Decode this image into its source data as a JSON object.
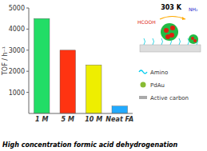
{
  "chart_data": {
    "type": "bar",
    "categories": [
      "1 M",
      "5 M",
      "10 M",
      "Neat FA"
    ],
    "values": [
      4500,
      3000,
      2300,
      350
    ],
    "colors": [
      "#22dd66",
      "#ff3311",
      "#eeee00",
      "#22aaff"
    ],
    "ylabel": "TOF / h⁻¹",
    "xlabel": "High concentration  formic acid dehydrogenation",
    "ylim": [
      0,
      5000
    ],
    "yticks": [
      1000,
      2000,
      3000,
      4000,
      5000
    ],
    "grid": false,
    "annotations": [
      {
        "text": "303 K",
        "color": "#000000"
      },
      {
        "text": "HCOOH",
        "color": "#dd2211"
      },
      {
        "text": "NH₂",
        "color": "#2222cc"
      },
      {
        "text": "Amino",
        "color": "#00ccee"
      },
      {
        "text": "PdAu",
        "color": "#88bb33"
      },
      {
        "text": "Active carbon",
        "color": "#aaaaaa"
      }
    ]
  }
}
